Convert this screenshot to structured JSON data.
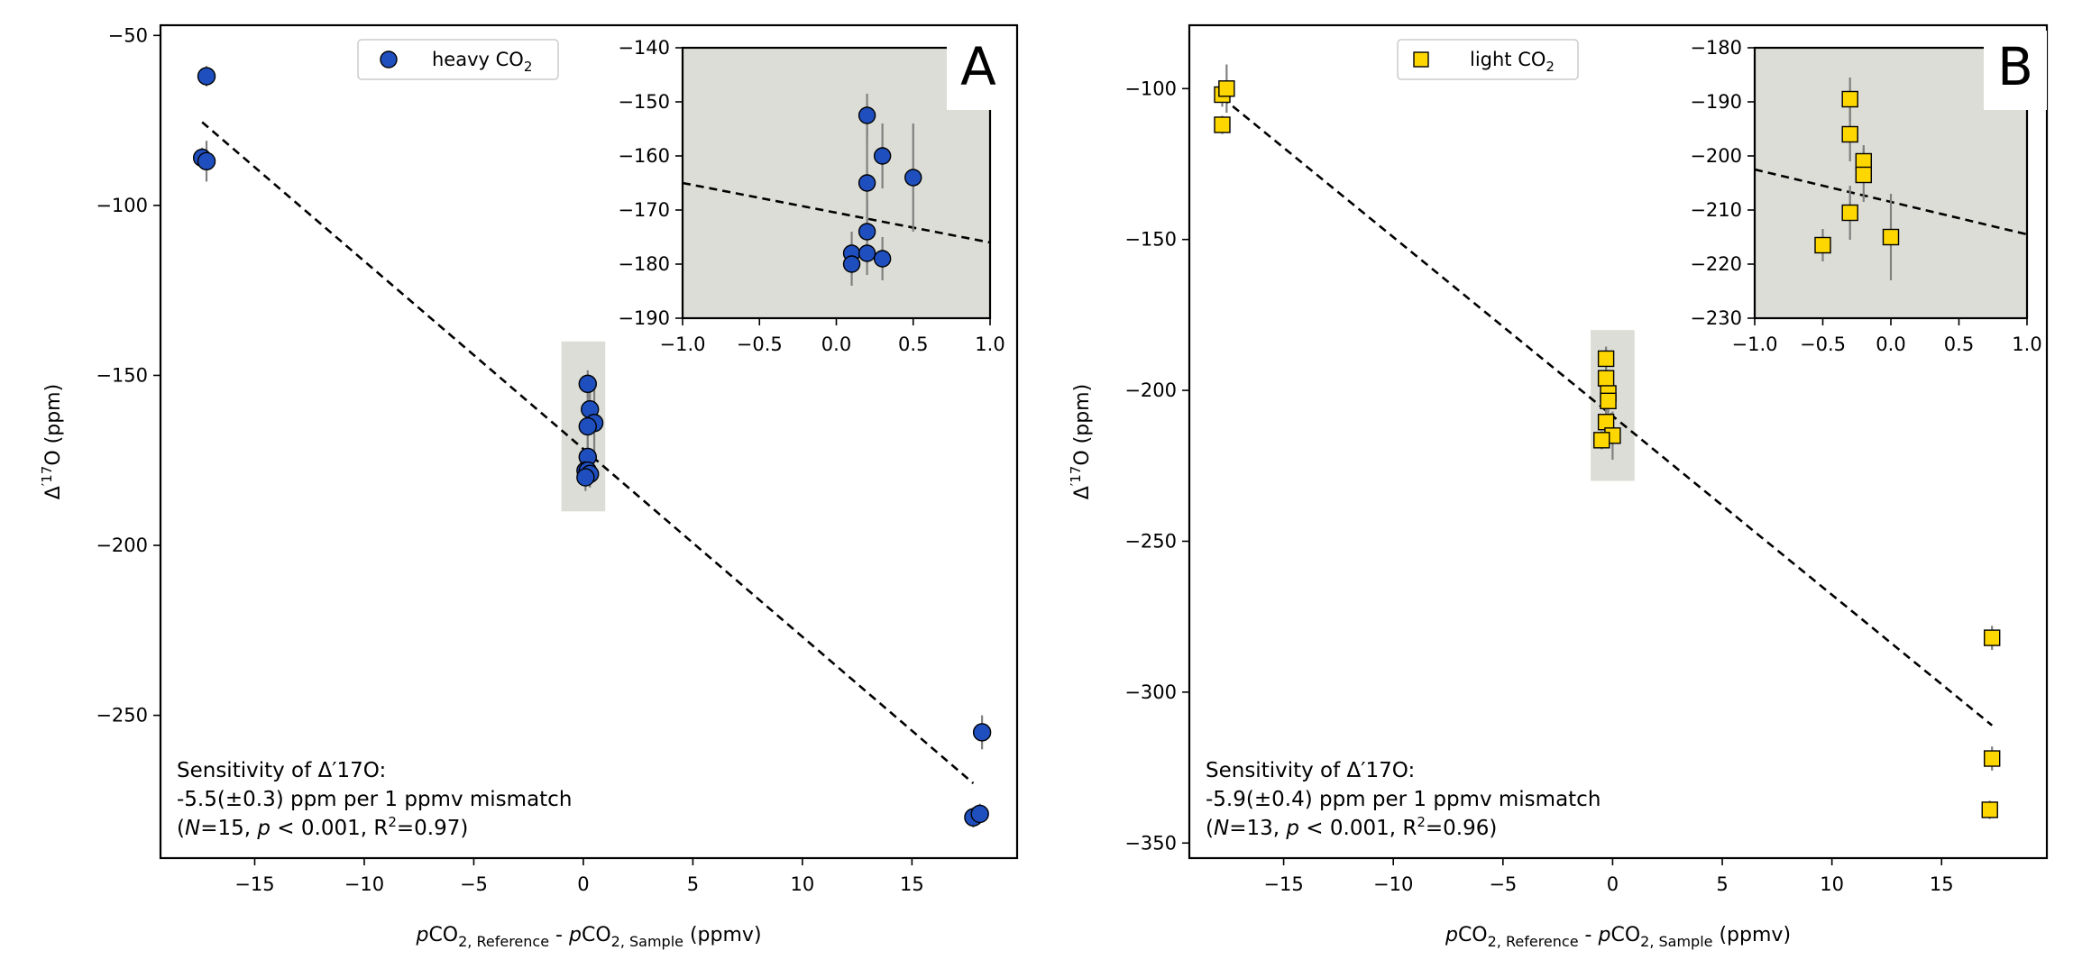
{
  "colors": {
    "heavy": "#1f4fbf",
    "light": "#ffd700",
    "error_bar": "#808080",
    "inset_bg": "#dcddd6",
    "highlight": "#dcddd6"
  },
  "chart_data": [
    {
      "type": "scatter",
      "panel_label": "A",
      "legend": {
        "label": "heavy CO",
        "sub": "2",
        "placement": "top-center",
        "marker": "circle"
      },
      "xlabel": {
        "p": "p",
        "co1": "CO",
        "sub1": "2, Reference",
        "mid": " - ",
        "p2": "p",
        "co2": "CO",
        "sub2": "2, Sample",
        "unit": " (ppmv)"
      },
      "ylabel": {
        "pre": "Δ",
        "sup": "′17",
        "post": "O (ppm)"
      },
      "xlim": [
        -19.3,
        19.8
      ],
      "ylim": [
        -292,
        -47
      ],
      "xticks": [
        "−15",
        "−10",
        "−5",
        "0",
        "5",
        "10",
        "15"
      ],
      "yticks": [
        "−50",
        "−100",
        "−150",
        "−200",
        "−250"
      ],
      "points": [
        {
          "x": -17.2,
          "y": -62,
          "err": 3
        },
        {
          "x": -17.4,
          "y": -86,
          "err": 3
        },
        {
          "x": -17.2,
          "y": -87,
          "err": 6
        },
        {
          "x": 0.2,
          "y": -152.5,
          "err": 4
        },
        {
          "x": 0.3,
          "y": -160,
          "err": 6
        },
        {
          "x": 0.5,
          "y": -164,
          "err": 10
        },
        {
          "x": 0.2,
          "y": -165,
          "err": 10
        },
        {
          "x": 0.2,
          "y": -174,
          "err": 6
        },
        {
          "x": 0.1,
          "y": -178,
          "err": 4
        },
        {
          "x": 0.2,
          "y": -178,
          "err": 4
        },
        {
          "x": 0.3,
          "y": -179,
          "err": 4
        },
        {
          "x": 0.1,
          "y": -180,
          "err": 4
        },
        {
          "x": 18.2,
          "y": -255,
          "err": 5
        },
        {
          "x": 17.8,
          "y": -280,
          "err": 3
        },
        {
          "x": 18.1,
          "y": -279,
          "err": 3
        }
      ],
      "fit": {
        "x": [
          -17.4,
          17.8
        ],
        "y": [
          -75.5,
          -270
        ]
      },
      "highlight_box": {
        "x": [
          -1,
          1
        ],
        "y": [
          -190,
          -140
        ]
      },
      "inset": {
        "xlim": [
          -1,
          1
        ],
        "ylim": [
          -190,
          -140
        ],
        "xticks": [
          "−1.0",
          "−0.5",
          "0.0",
          "0.5",
          "1.0"
        ],
        "yticks": [
          "−140",
          "−150",
          "−160",
          "−170",
          "−180",
          "−190"
        ],
        "fit": {
          "x": [
            -1,
            1
          ],
          "y": [
            -165,
            -176
          ]
        }
      },
      "annotation": [
        "Sensitivity of Δ′17O:",
        "-5.5(±0.3) ppm per 1 ppmv mismatch",
        "(N=15, p < 0.001, R2=0.97)"
      ],
      "annotation_parts": {
        "line3_a": "(",
        "n": "N",
        "line3_b": "=15, ",
        "p": "p",
        "line3_c": " < 0.001, R",
        "r2sup": "2",
        "line3_d": "=0.97)"
      }
    },
    {
      "type": "scatter",
      "panel_label": "B",
      "legend": {
        "label": "light CO",
        "sub": "2",
        "placement": "top-center",
        "marker": "square"
      },
      "xlabel": {
        "p": "p",
        "co1": "CO",
        "sub1": "2, Reference",
        "mid": " - ",
        "p2": "p",
        "co2": "CO",
        "sub2": "2, Sample",
        "unit": " (ppmv)"
      },
      "ylabel": {
        "pre": "Δ",
        "sup": "′17",
        "post": "O (ppm)"
      },
      "xlim": [
        -19.3,
        19.8
      ],
      "ylim": [
        -355,
        -79
      ],
      "xticks": [
        "−15",
        "−10",
        "−5",
        "0",
        "5",
        "10",
        "15"
      ],
      "yticks": [
        "−100",
        "−150",
        "−200",
        "−250",
        "−300",
        "−350"
      ],
      "points": [
        {
          "x": -17.8,
          "y": -102,
          "err": 4
        },
        {
          "x": -17.6,
          "y": -100,
          "err": 8
        },
        {
          "x": -17.8,
          "y": -112,
          "err": 3
        },
        {
          "x": -0.3,
          "y": -189.5,
          "err": 4
        },
        {
          "x": -0.3,
          "y": -196,
          "err": 5
        },
        {
          "x": -0.2,
          "y": -201,
          "err": 3
        },
        {
          "x": -0.2,
          "y": -203.5,
          "err": 5
        },
        {
          "x": -0.3,
          "y": -210.5,
          "err": 5
        },
        {
          "x": 0.0,
          "y": -215,
          "err": 8
        },
        {
          "x": -0.5,
          "y": -216.5,
          "err": 3
        },
        {
          "x": 17.3,
          "y": -282,
          "err": 4
        },
        {
          "x": 17.3,
          "y": -322,
          "err": 4
        },
        {
          "x": 17.2,
          "y": -339,
          "err": 3
        }
      ],
      "fit": {
        "x": [
          -17.8,
          17.3
        ],
        "y": [
          -103,
          -311
        ]
      },
      "highlight_box": {
        "x": [
          -1,
          1
        ],
        "y": [
          -230,
          -180
        ]
      },
      "inset": {
        "xlim": [
          -1,
          1
        ],
        "ylim": [
          -230,
          -180
        ],
        "xticks": [
          "−1.0",
          "−0.5",
          "0.0",
          "0.5",
          "1.0"
        ],
        "yticks": [
          "−180",
          "−190",
          "−200",
          "−210",
          "−220",
          "−230"
        ],
        "fit": {
          "x": [
            -1,
            1
          ],
          "y": [
            -202.5,
            -214.5
          ]
        }
      },
      "annotation": [
        "Sensitivity of Δ′17O:",
        "-5.9(±0.4) ppm per 1 ppmv mismatch",
        "(N=13, p < 0.001, R2=0.96)"
      ],
      "annotation_parts": {
        "line3_a": "(",
        "n": "N",
        "line3_b": "=13, ",
        "p": "p",
        "line3_c": " < 0.001, R",
        "r2sup": "2",
        "line3_d": "=0.96)"
      }
    }
  ]
}
